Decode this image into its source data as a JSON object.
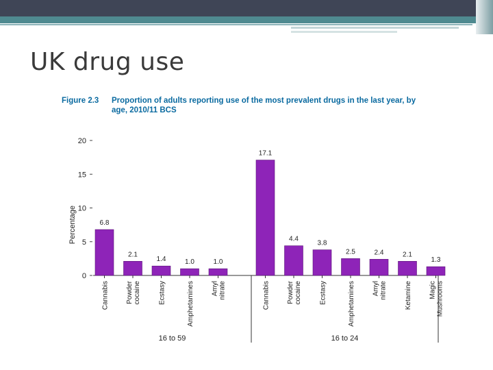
{
  "slide": {
    "title": "UK drug use"
  },
  "figure": {
    "number": "Figure 2.3",
    "caption_line1": "Proportion of adults reporting use of the most prevalent drugs in the last year, by",
    "caption_line2": "age, 2010/11 BCS"
  },
  "chart_data": {
    "type": "bar",
    "title": "Proportion of adults reporting use of the most prevalent drugs in the last year, by age, 2010/11 BCS",
    "ylabel": "Percentage",
    "xlabel": "",
    "ylim": [
      0,
      20
    ],
    "yticks": [
      0,
      5,
      10,
      15,
      20
    ],
    "bar_color": "#8e24b8",
    "groups": [
      {
        "name": "16 to 59",
        "categories": [
          "Cannabis",
          "Powder cocaine",
          "Ecstasy",
          "Amphetamines",
          "Amyl nitrate"
        ],
        "values": [
          6.8,
          2.1,
          1.4,
          1.0,
          1.0
        ],
        "labels": [
          "6.8",
          "2.1",
          "1.4",
          "1.0",
          "1.0"
        ]
      },
      {
        "name": "16 to 24",
        "categories": [
          "Cannabis",
          "Powder cocaine",
          "Ecstasy",
          "Amphetamines",
          "Amyl nitrate",
          "Ketamine",
          "Magic Mushrooms"
        ],
        "values": [
          17.1,
          4.4,
          3.8,
          2.5,
          2.4,
          2.1,
          1.3
        ],
        "labels": [
          "17.1",
          "4.4",
          "3.8",
          "2.5",
          "2.4",
          "2.1",
          "1.3"
        ]
      }
    ]
  },
  "colors": {
    "top_band": "#3f4556",
    "teal_band": "#4f8a90",
    "caption": "#0a6aa0",
    "bars": "#8e24b8"
  }
}
